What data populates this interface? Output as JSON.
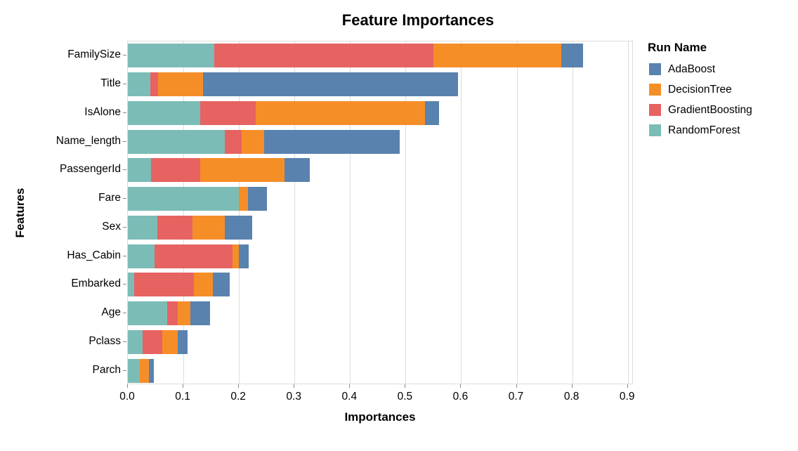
{
  "chart_data": {
    "type": "bar",
    "orientation": "horizontal",
    "stacked": true,
    "title": "Feature Importances",
    "xlabel": "Importances",
    "ylabel": "Features",
    "legend_title": "Run Name",
    "legend_position": "right",
    "grid": true,
    "xlim": [
      0,
      0.908
    ],
    "x_ticks": [
      "0.0",
      "0.1",
      "0.2",
      "0.3",
      "0.4",
      "0.5",
      "0.6",
      "0.7",
      "0.8",
      "0.9"
    ],
    "categories": [
      "FamilySize",
      "Title",
      "IsAlone",
      "Name_length",
      "PassengerId",
      "Fare",
      "Sex",
      "Has_Cabin",
      "Embarked",
      "Age",
      "Pclass",
      "Parch"
    ],
    "stack_order": [
      "RandomForest",
      "GradientBoosting",
      "DecisionTree",
      "AdaBoost"
    ],
    "series": [
      {
        "name": "AdaBoost",
        "color": "#4c78a8",
        "values": [
          0.04,
          0.46,
          0.025,
          0.245,
          0.045,
          0.035,
          0.049,
          0.017,
          0.03,
          0.036,
          0.017,
          0.009
        ]
      },
      {
        "name": "DecisionTree",
        "color": "#f58518",
        "values": [
          0.23,
          0.08,
          0.305,
          0.04,
          0.152,
          0.016,
          0.059,
          0.012,
          0.034,
          0.022,
          0.028,
          0.017
        ]
      },
      {
        "name": "GradientBoosting",
        "color": "#e45756",
        "values": [
          0.395,
          0.015,
          0.1,
          0.03,
          0.088,
          0.0,
          0.063,
          0.14,
          0.108,
          0.019,
          0.035,
          0.0
        ]
      },
      {
        "name": "RandomForest",
        "color": "#72b7b2",
        "values": [
          0.155,
          0.04,
          0.13,
          0.175,
          0.042,
          0.2,
          0.053,
          0.048,
          0.011,
          0.071,
          0.027,
          0.021
        ]
      }
    ],
    "totals": [
      0.82,
      0.595,
      0.56,
      0.49,
      0.327,
      0.251,
      0.224,
      0.217,
      0.183,
      0.148,
      0.107,
      0.047
    ]
  },
  "colors": {
    "grid": "#dddddd",
    "axis_tick": "#888888",
    "plot_border": "#dcdcdc",
    "text": "#000000",
    "background": "#ffffff"
  }
}
